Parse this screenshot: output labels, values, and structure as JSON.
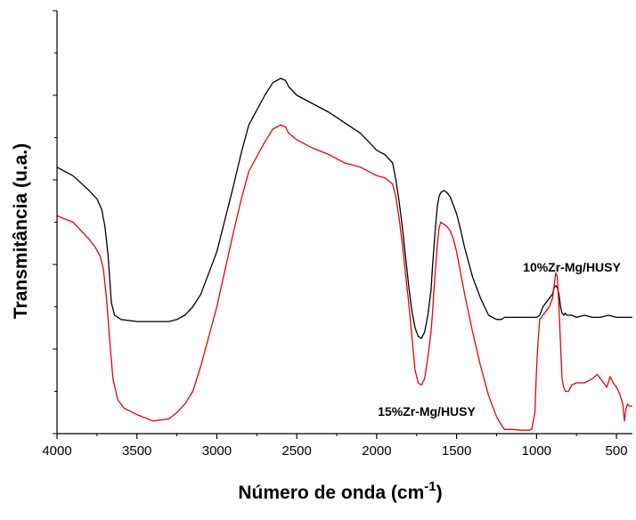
{
  "chart_data": {
    "type": "line",
    "title": "",
    "xlabel_main": "Número de onda (cm",
    "xlabel_sup": "-1",
    "xlabel_close": ")",
    "ylabel": "Transmitância (u.a.)",
    "xlim": [
      4000,
      400
    ],
    "x_reversed": true,
    "yaxis_ticklabels": false,
    "grid": false,
    "xticks": [
      4000,
      3500,
      3000,
      2500,
      2000,
      1500,
      1000,
      500
    ],
    "xtick_labels": [
      "4000",
      "3500",
      "3000",
      "2500",
      "2000",
      "1500",
      "1000",
      "500"
    ],
    "ylim": [
      0,
      100
    ],
    "series": [
      {
        "name": "10%Zr-Mg/HUSY",
        "color": "#000000",
        "x": [
          4000,
          3900,
          3800,
          3750,
          3720,
          3700,
          3680,
          3660,
          3640,
          3600,
          3500,
          3400,
          3300,
          3250,
          3200,
          3150,
          3100,
          3000,
          2900,
          2850,
          2800,
          2700,
          2650,
          2600,
          2570,
          2550,
          2500,
          2400,
          2300,
          2200,
          2100,
          2000,
          1950,
          1900,
          1880,
          1860,
          1840,
          1820,
          1800,
          1780,
          1760,
          1740,
          1720,
          1700,
          1680,
          1660,
          1650,
          1640,
          1630,
          1620,
          1610,
          1600,
          1580,
          1560,
          1540,
          1520,
          1500,
          1480,
          1450,
          1400,
          1350,
          1300,
          1250,
          1220,
          1200,
          1150,
          1100,
          1050,
          1000,
          980,
          960,
          940,
          920,
          900,
          890,
          880,
          870,
          860,
          850,
          840,
          830,
          820,
          810,
          800,
          780,
          750,
          700,
          650,
          600,
          550,
          500,
          450,
          420,
          400
        ],
        "y": [
          63,
          61,
          57.5,
          55.5,
          53,
          49,
          42,
          31,
          28,
          27,
          26.5,
          26.5,
          26.5,
          27,
          28,
          30,
          33,
          43,
          58,
          66,
          73,
          80,
          83,
          84,
          83.5,
          82,
          80,
          78,
          76,
          73.5,
          71,
          67,
          66,
          64,
          60,
          55,
          49,
          42,
          35,
          29,
          25,
          23,
          22.5,
          24,
          28,
          34,
          40,
          45,
          50,
          54,
          56,
          57,
          57.5,
          57,
          56,
          54,
          52,
          49,
          44,
          37,
          32,
          28,
          27,
          27,
          27.5,
          27.5,
          27.5,
          27.5,
          27.5,
          28,
          30,
          31,
          32,
          33,
          34.5,
          35,
          34.5,
          33,
          30,
          28.5,
          28,
          28.5,
          28,
          28,
          28,
          27.5,
          28,
          27.5,
          27.5,
          28,
          27.5,
          27.5,
          27.5,
          27.5
        ]
      },
      {
        "name": "15%Zr-Mg/HUSY",
        "color": "#e8000b",
        "x": [
          4000,
          3900,
          3800,
          3760,
          3730,
          3710,
          3690,
          3670,
          3650,
          3620,
          3580,
          3500,
          3400,
          3300,
          3250,
          3200,
          3150,
          3100,
          3000,
          2900,
          2850,
          2800,
          2700,
          2650,
          2600,
          2570,
          2550,
          2500,
          2400,
          2300,
          2200,
          2100,
          2000,
          1950,
          1900,
          1880,
          1860,
          1840,
          1820,
          1800,
          1780,
          1760,
          1740,
          1720,
          1700,
          1680,
          1660,
          1650,
          1640,
          1630,
          1620,
          1610,
          1600,
          1580,
          1560,
          1540,
          1520,
          1500,
          1480,
          1450,
          1400,
          1350,
          1300,
          1250,
          1220,
          1200,
          1180,
          1150,
          1100,
          1050,
          1030,
          1010,
          1000,
          990,
          980,
          960,
          940,
          920,
          900,
          890,
          880,
          870,
          860,
          850,
          840,
          830,
          820,
          800,
          780,
          750,
          700,
          650,
          620,
          600,
          580,
          560,
          540,
          520,
          500,
          480,
          460,
          450,
          440,
          430,
          420,
          400
        ],
        "y": [
          51.5,
          50,
          46,
          44,
          42,
          39,
          32,
          22,
          13,
          8,
          6,
          4.5,
          3,
          3.5,
          5,
          7,
          10,
          16,
          30,
          47,
          55,
          62,
          69,
          72,
          73,
          72.5,
          71,
          69.5,
          67.5,
          66,
          64,
          63,
          61,
          60.5,
          59,
          56,
          51,
          45,
          38,
          31,
          23,
          15,
          12,
          11.5,
          13,
          18,
          24,
          29,
          35,
          40,
          45,
          48.5,
          50,
          49.5,
          49,
          48,
          46,
          43,
          39,
          33,
          24,
          16,
          9,
          4,
          2,
          1,
          1,
          1,
          0.8,
          0.8,
          1,
          5,
          15,
          22,
          27,
          28,
          29,
          30,
          32,
          35,
          38,
          37,
          30,
          21,
          13,
          11,
          10,
          10,
          11.5,
          12,
          12,
          13,
          14,
          13,
          12,
          11,
          13.5,
          12,
          11,
          9.5,
          7,
          3,
          6,
          7,
          6.5,
          6.5
        ]
      }
    ],
    "annotations": [
      {
        "text": "10%Zr-Mg/HUSY",
        "series": 0
      },
      {
        "text": "15%Zr-Mg/HUSY",
        "series": 1
      }
    ]
  }
}
